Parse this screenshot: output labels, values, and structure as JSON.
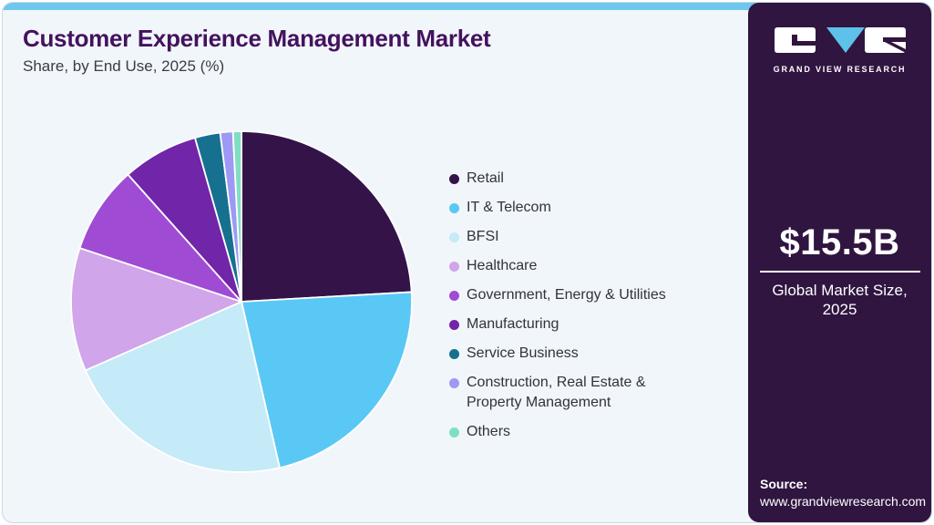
{
  "header": {
    "title": "Customer Experience Management Market",
    "subtitle": "Share, by End Use, 2025 (%)"
  },
  "brand": {
    "name": "GRAND VIEW RESEARCH"
  },
  "sidebar": {
    "market_size": "$15.5B",
    "market_label_line1": "Global Market Size,",
    "market_label_line2": "2025",
    "source_label": "Source:",
    "source_url": "www.grandviewresearch.com"
  },
  "colors": {
    "accent_strip": "#6ec7ee",
    "sidebar_bg": "#301540",
    "title": "#44125e",
    "card_bg": "#f1f6fa",
    "slice_separator": "#ffffff"
  },
  "chart_data": {
    "type": "pie",
    "title": "Customer Experience Management Market Share, by End Use, 2025 (%)",
    "units": "%",
    "legend_position": "right",
    "start_angle_deg_from_top": 0,
    "direction": "clockwise",
    "slices": [
      {
        "label": "Retail",
        "value": 24.1,
        "color": "#341349"
      },
      {
        "label": "IT & Telecom",
        "value": 22.3,
        "color": "#5ac8f4"
      },
      {
        "label": "BFSI",
        "value": 22.0,
        "color": "#c5eaf8"
      },
      {
        "label": "Healthcare",
        "value": 11.7,
        "color": "#d0a5e9"
      },
      {
        "label": "Government, Energy & Utilities",
        "value": 8.3,
        "color": "#a04bd4"
      },
      {
        "label": "Manufacturing",
        "value": 7.2,
        "color": "#7125a8"
      },
      {
        "label": "Service Business",
        "value": 2.4,
        "color": "#16708f"
      },
      {
        "label": "Construction, Real Estate & Property Management",
        "value": 1.2,
        "color": "#9d99f5"
      },
      {
        "label": "Others",
        "value": 0.8,
        "color": "#7fdfc2"
      }
    ]
  }
}
